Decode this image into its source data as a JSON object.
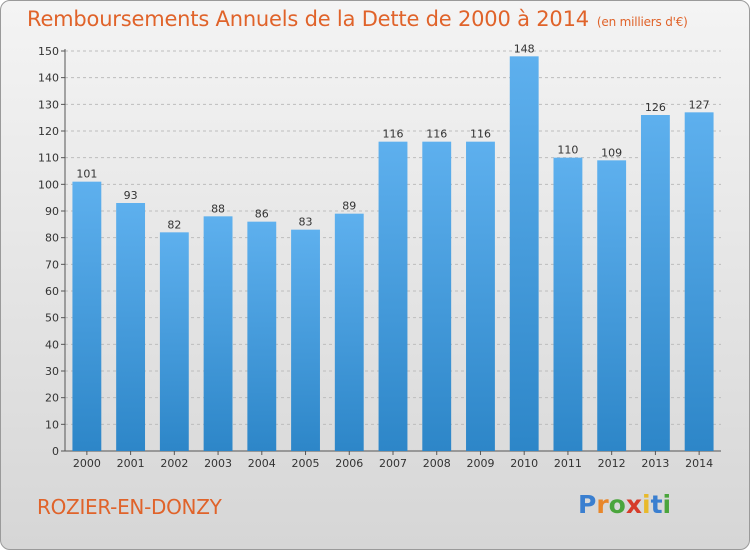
{
  "title": "Remboursements Annuels de la Dette de 2000 à 2014",
  "unit_note": "(en milliers d'€)",
  "commune": "ROZIER-EN-DONZY",
  "logo": {
    "letters": [
      "P",
      "r",
      "o",
      "x",
      "i",
      "t",
      "i"
    ],
    "colors": [
      "#3a7fd0",
      "#e8872b",
      "#4aa53c",
      "#d63c2a",
      "#e8b92b",
      "#3a7fd0",
      "#4aa53c"
    ]
  },
  "colors": {
    "title": "#e0632a",
    "bar_top": "#5eb0ee",
    "bar_bottom": "#2d86c8"
  },
  "chart_data": {
    "type": "bar",
    "categories": [
      "2000",
      "2001",
      "2002",
      "2003",
      "2004",
      "2005",
      "2006",
      "2007",
      "2008",
      "2009",
      "2010",
      "2011",
      "2012",
      "2013",
      "2014"
    ],
    "values": [
      101,
      93,
      82,
      88,
      86,
      83,
      89,
      116,
      116,
      116,
      148,
      110,
      109,
      126,
      127
    ],
    "title": "Remboursements Annuels de la Dette de 2000 à 2014",
    "xlabel": "",
    "ylabel": "",
    "ylim": [
      0,
      150
    ],
    "yticks": [
      0,
      10,
      20,
      30,
      40,
      50,
      60,
      70,
      80,
      90,
      100,
      110,
      120,
      130,
      140,
      150
    ],
    "grid": true,
    "legend": "none"
  }
}
